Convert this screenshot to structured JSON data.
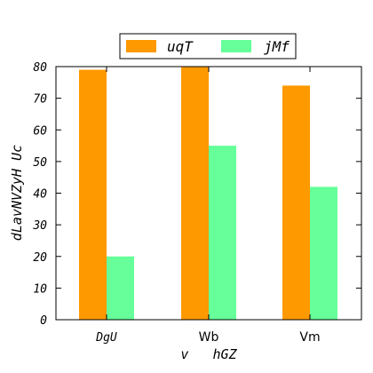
{
  "chart_data": {
    "type": "bar",
    "categories": [
      "DgU",
      "Wb",
      "Vm"
    ],
    "series": [
      {
        "name": "uqT",
        "values": [
          79,
          80,
          74
        ],
        "color": "#ff9900"
      },
      {
        "name": "jMf",
        "values": [
          20,
          55,
          42
        ],
        "color": "#66ff99"
      }
    ],
    "title": "",
    "xlabel": "v   hGZ",
    "ylabel": "dLavNVZyH Uc",
    "ylim": [
      0,
      80
    ],
    "yticks": [
      "0",
      "10",
      "20",
      "30",
      "40",
      "50",
      "60",
      "70",
      "80"
    ],
    "grid": false,
    "legend_position": "top-center"
  }
}
